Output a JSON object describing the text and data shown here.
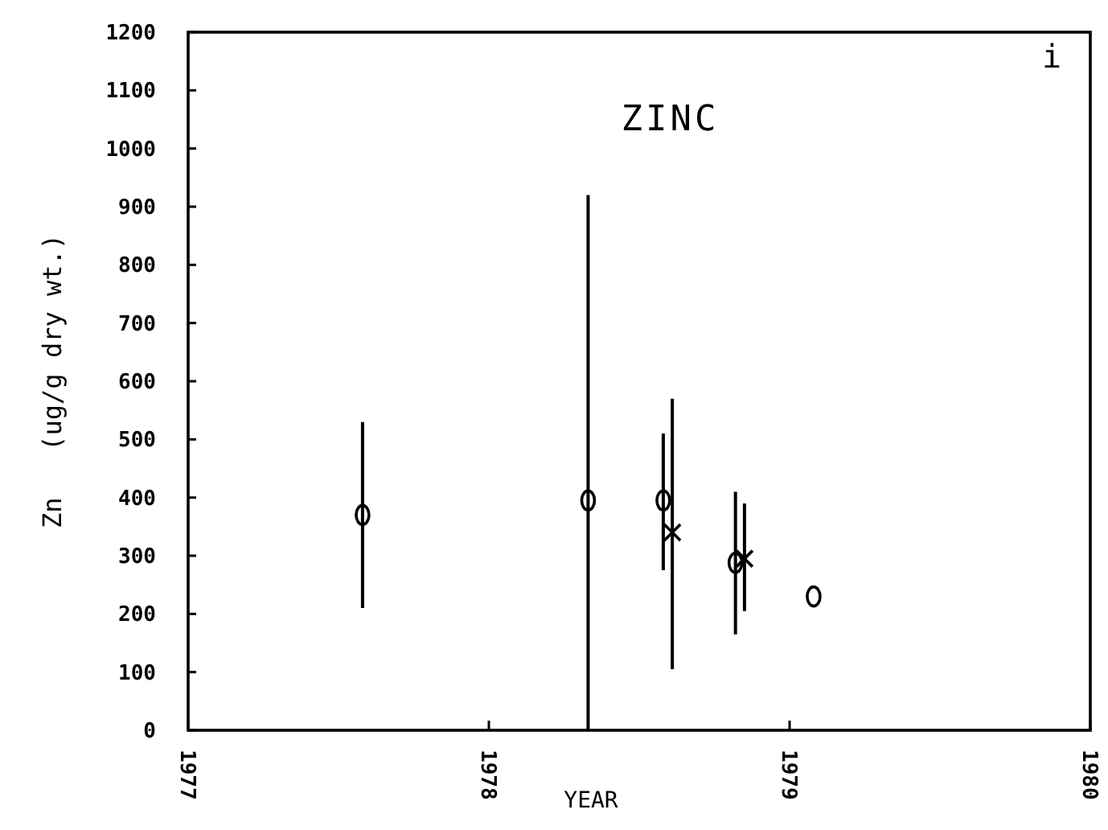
{
  "chart_data": {
    "type": "scatter",
    "title": "ZINC",
    "xlabel": "YEAR",
    "ylabel": "Zn   (ug/g dry wt.)",
    "annotations": [
      "i"
    ],
    "xlim": [
      1977,
      1980
    ],
    "xticks": [
      1977,
      1978,
      1979,
      1980
    ],
    "ylim": [
      0,
      1200
    ],
    "yticks": [
      0,
      100,
      200,
      300,
      400,
      500,
      600,
      700,
      800,
      900,
      1000,
      1100,
      1200
    ],
    "grid": false,
    "series": [
      {
        "color": "#000000",
        "marker": "circle",
        "x": [
          1977.58,
          1978.33,
          1978.58,
          1978.82,
          1979.08
        ],
        "values": [
          370,
          395,
          395,
          288,
          230
        ],
        "errors": [
          [
            210,
            530
          ],
          [
            0,
            920
          ],
          [
            275,
            510
          ],
          [
            165,
            410
          ],
          null
        ]
      },
      {
        "color": "#000000",
        "marker": "cross",
        "x": [
          1978.61,
          1978.85
        ],
        "values": [
          340,
          295
        ],
        "errors": [
          [
            105,
            570
          ],
          [
            205,
            390
          ]
        ]
      }
    ]
  }
}
